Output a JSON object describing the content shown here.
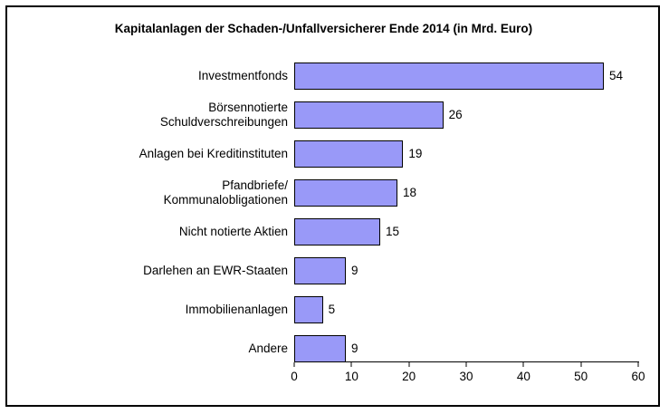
{
  "chart_data": {
    "type": "bar",
    "orientation": "horizontal",
    "title": "Kapitalanlagen der Schaden-/Unfallversicherer Ende 2014 (in Mrd. Euro)",
    "categories": [
      "Investmentfonds",
      "Börsennotierte\nSchuldverschreibungen",
      "Anlagen bei Kreditinstituten",
      "Pfandbriefe/\nKommunalobligationen",
      "Nicht notierte Aktien",
      "Darlehen an EWR-Staaten",
      "Immobilienanlagen",
      "Andere"
    ],
    "values": [
      54,
      26,
      19,
      18,
      15,
      9,
      5,
      9
    ],
    "xlabel": "",
    "ylabel": "",
    "xlim": [
      0,
      60
    ],
    "x_ticks": [
      0,
      10,
      20,
      30,
      40,
      50,
      60
    ],
    "grid": "off",
    "legend": "none",
    "value_labels_shown": true,
    "bar_color": "#9999F8",
    "bar_border_color": "#000000",
    "frame_border_color": "#000000",
    "background_color": "#FFFFFF"
  }
}
